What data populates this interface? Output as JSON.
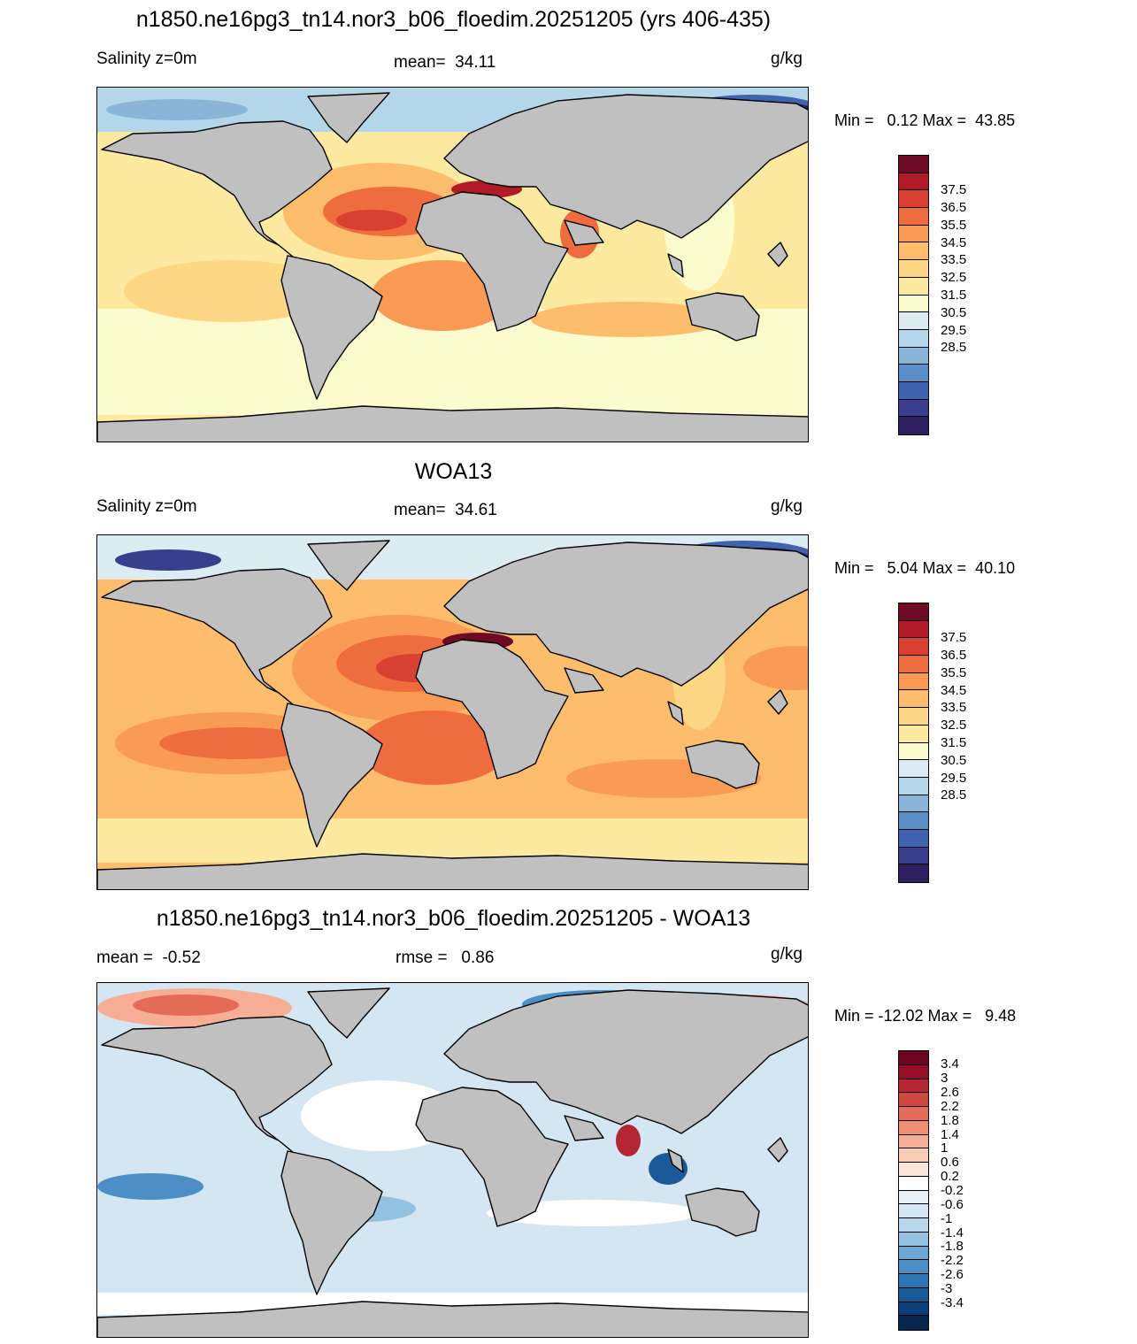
{
  "colors": {
    "land": "#c0c0c0",
    "coast": "#000000",
    "salinity_scale": [
      "#2d1e5e",
      "#3a3d8c",
      "#3f63ad",
      "#5a8ec4",
      "#88b5d8",
      "#b3d6e8",
      "#dcecf2",
      "#fbfbcd",
      "#fdeaa0",
      "#fdd784",
      "#fdbd6c",
      "#f99a55",
      "#ef6c3e",
      "#d8402f",
      "#b01b27",
      "#6e0a23"
    ],
    "diff_scale": [
      "#07264f",
      "#0d3f78",
      "#1a5a98",
      "#2c74b3",
      "#4b90c5",
      "#6ca9d3",
      "#93c2e0",
      "#b7d6ea",
      "#d4e6f1",
      "#e8f1f7",
      "#ffffff",
      "#fde4d8",
      "#fbccb5",
      "#f6ae94",
      "#ef8e72",
      "#e36b57",
      "#cf4743",
      "#b42632",
      "#960e25",
      "#6d041f"
    ]
  },
  "panels": [
    {
      "title": "n1850.ne16pg3_tn14.nor3_b06_floedim.20251205 (yrs 406-435)",
      "left_label": "Salinity z=0m",
      "center_label": "mean=  34.11",
      "units": "g/kg",
      "minmax": "Min =   0.12 Max =  43.85",
      "colorbar_ticks": [
        "37.5",
        "36.5",
        "35.5",
        "34.5",
        "33.5",
        "32.5",
        "31.5",
        "30.5",
        "29.5",
        "28.5"
      ]
    },
    {
      "title": "WOA13",
      "left_label": "Salinity z=0m",
      "center_label": "mean=  34.61",
      "units": "g/kg",
      "minmax": "Min =   5.04 Max =  40.10",
      "colorbar_ticks": [
        "37.5",
        "36.5",
        "35.5",
        "34.5",
        "33.5",
        "32.5",
        "31.5",
        "30.5",
        "29.5",
        "28.5"
      ]
    },
    {
      "title": "n1850.ne16pg3_tn14.nor3_b06_floedim.20251205 - WOA13",
      "left_label": "mean =  -0.52",
      "center_label": "rmse =   0.86",
      "units": "g/kg",
      "minmax": "Min = -12.02 Max =   9.48",
      "colorbar_ticks": [
        "3.4",
        "3",
        "2.6",
        "2.2",
        "1.8",
        "1.4",
        "1",
        "0.6",
        "0.2",
        "-0.2",
        "-0.6",
        "-1",
        "-1.4",
        "-1.8",
        "-2.2",
        "-2.6",
        "-3",
        "-3.4"
      ]
    }
  ]
}
